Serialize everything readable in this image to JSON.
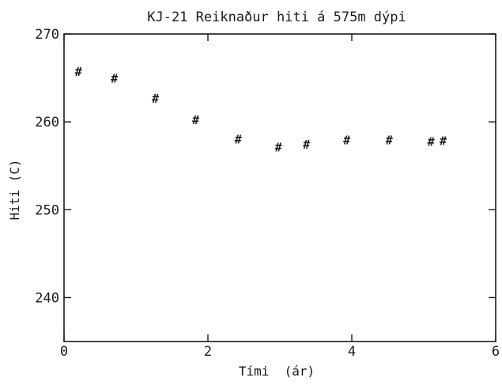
{
  "chart_data": {
    "type": "scatter",
    "title": "KJ-21 Reiknaður hiti á 575m dýpi",
    "xlabel": "Tími  (ár)",
    "ylabel": "Hiti (C)",
    "xlim": [
      0,
      6
    ],
    "ylim": [
      235,
      270
    ],
    "xticks": [
      0,
      2,
      4,
      6
    ],
    "yticks": [
      240,
      250,
      260,
      270
    ],
    "marker_symbol": "#",
    "grid": false,
    "legend": false,
    "points": [
      {
        "x": 0.2,
        "y": 265.7
      },
      {
        "x": 0.7,
        "y": 264.9
      },
      {
        "x": 1.27,
        "y": 262.6
      },
      {
        "x": 1.83,
        "y": 260.2
      },
      {
        "x": 2.42,
        "y": 258.0
      },
      {
        "x": 2.98,
        "y": 257.1
      },
      {
        "x": 3.37,
        "y": 257.4
      },
      {
        "x": 3.93,
        "y": 257.9
      },
      {
        "x": 4.52,
        "y": 257.9
      },
      {
        "x": 5.1,
        "y": 257.7
      },
      {
        "x": 5.27,
        "y": 257.8
      }
    ]
  }
}
